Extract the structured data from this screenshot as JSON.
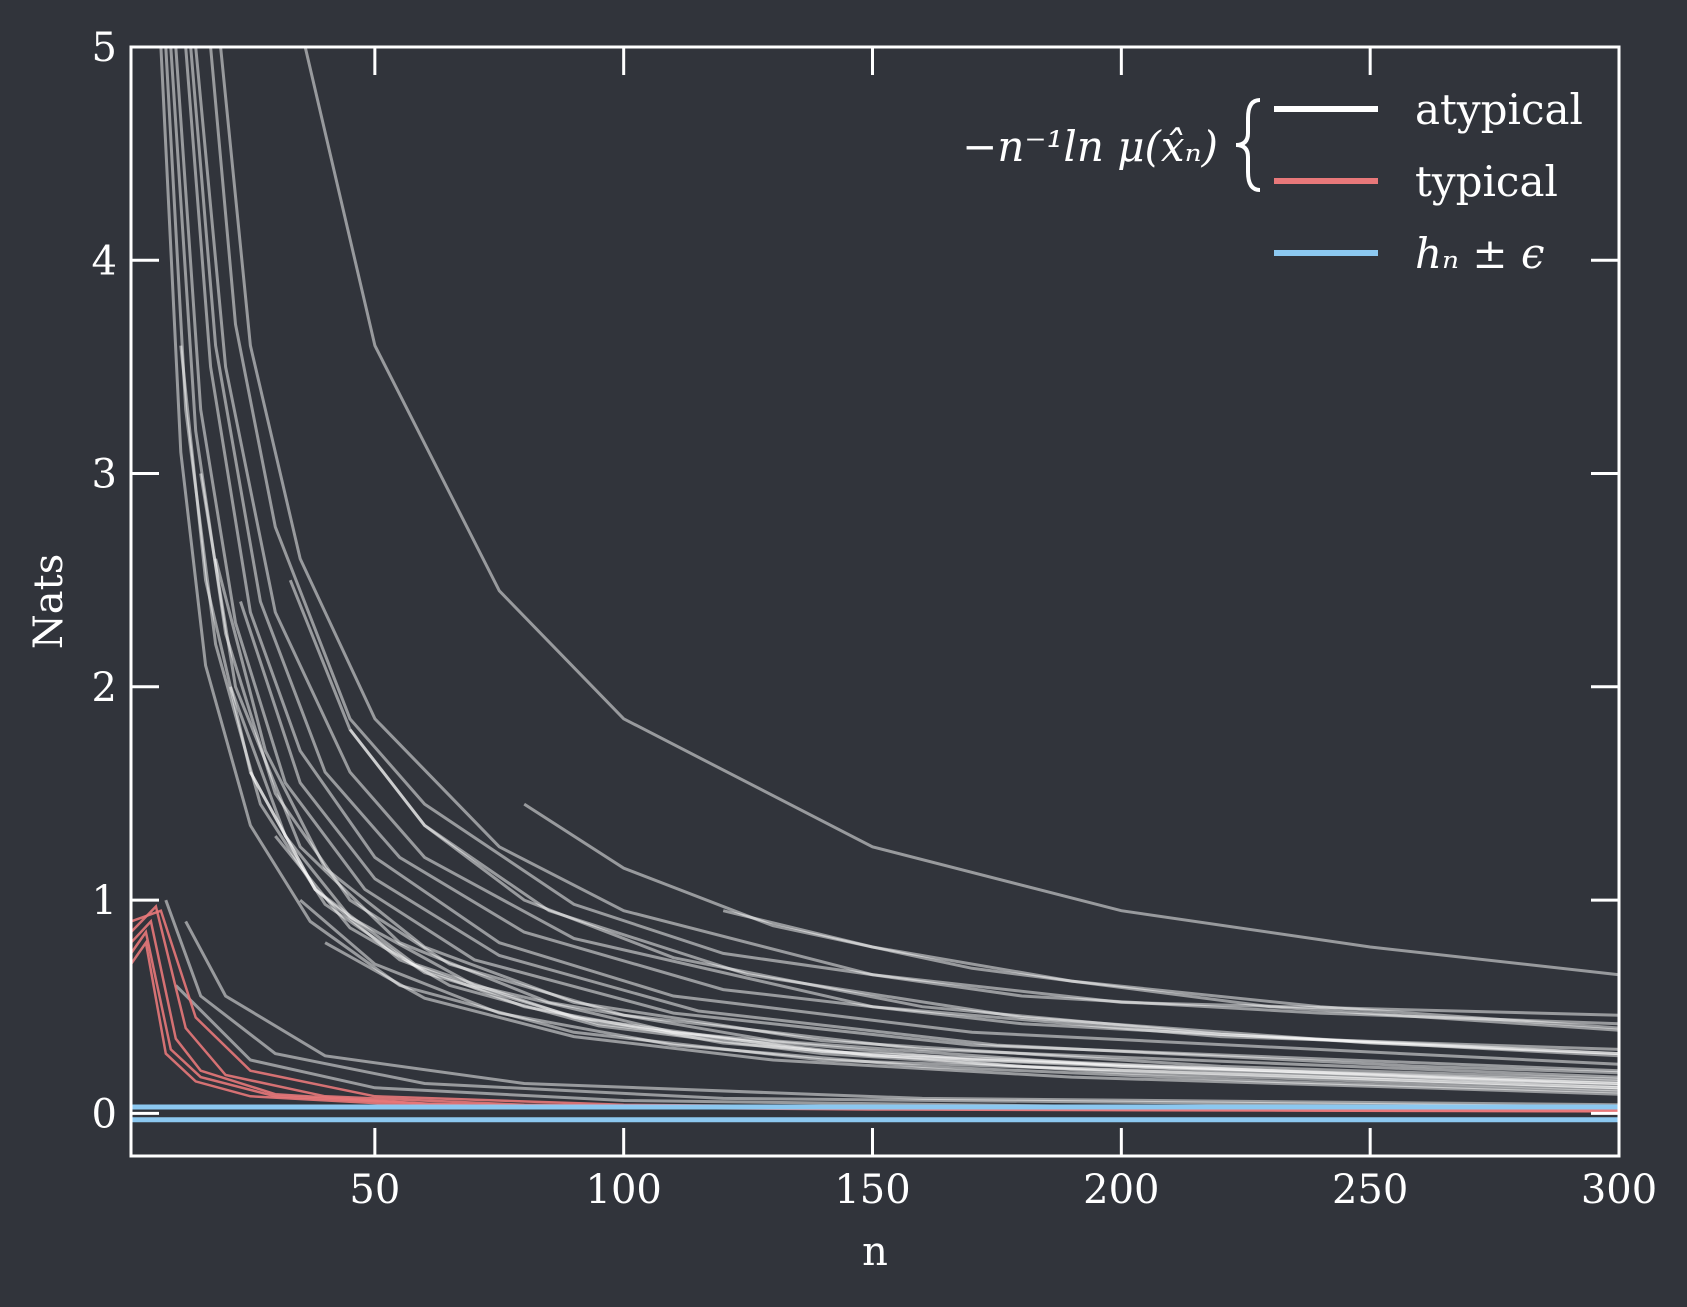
{
  "chart_data": {
    "type": "line",
    "title": "",
    "xlabel": "n",
    "ylabel": "Nats",
    "xlim": [
      1,
      300
    ],
    "ylim": [
      -0.2,
      5
    ],
    "xticks": [
      50,
      100,
      150,
      200,
      250,
      300
    ],
    "yticks": [
      0,
      1,
      2,
      3,
      4,
      5
    ],
    "xtick_labels": [
      "50",
      "100",
      "150",
      "200",
      "250",
      "300"
    ],
    "ytick_labels": [
      "0",
      "1",
      "2",
      "3",
      "4",
      "5"
    ],
    "grid": false,
    "legend": {
      "placement": "top-right",
      "brace_label": "−n⁻¹ln μ(x̂ₙ)",
      "entries": [
        {
          "label": "atypical",
          "color": "#ffffff"
        },
        {
          "label": "typical",
          "color": "#e8787a"
        },
        {
          "label": "hₙ ± ϵ",
          "color": "#8cc8f0"
        }
      ]
    },
    "colors": {
      "background": "#31343b",
      "axes": "#ffffff",
      "atypical": "#ffffff",
      "typical": "#e8787a",
      "band": "#8cc8f0"
    },
    "band": {
      "center": 0.0,
      "epsilon": 0.03
    },
    "typical_series": [
      {
        "name": "typical",
        "values": [
          [
            1,
            0.8
          ],
          [
            5,
            0.9
          ],
          [
            10,
            0.35
          ],
          [
            15,
            0.2
          ],
          [
            30,
            0.09
          ],
          [
            60,
            0.045
          ],
          [
            100,
            0.03
          ],
          [
            150,
            0.02
          ],
          [
            300,
            0.01
          ]
        ]
      },
      {
        "name": "typical",
        "values": [
          [
            1,
            0.85
          ],
          [
            6,
            0.97
          ],
          [
            12,
            0.4
          ],
          [
            20,
            0.18
          ],
          [
            40,
            0.08
          ],
          [
            80,
            0.04
          ],
          [
            150,
            0.025
          ],
          [
            300,
            0.012
          ]
        ]
      },
      {
        "name": "typical",
        "values": [
          [
            1,
            0.75
          ],
          [
            4,
            0.85
          ],
          [
            9,
            0.3
          ],
          [
            15,
            0.17
          ],
          [
            30,
            0.08
          ],
          [
            70,
            0.035
          ],
          [
            150,
            0.02
          ],
          [
            300,
            0.01
          ]
        ]
      },
      {
        "name": "typical",
        "values": [
          [
            1,
            0.7
          ],
          [
            4,
            0.8
          ],
          [
            8,
            0.28
          ],
          [
            14,
            0.15
          ],
          [
            25,
            0.08
          ],
          [
            60,
            0.035
          ],
          [
            150,
            0.018
          ],
          [
            300,
            0.009
          ]
        ]
      },
      {
        "name": "typical",
        "values": [
          [
            1,
            0.9
          ],
          [
            7,
            0.95
          ],
          [
            14,
            0.45
          ],
          [
            25,
            0.2
          ],
          [
            50,
            0.08
          ],
          [
            100,
            0.04
          ],
          [
            200,
            0.02
          ],
          [
            300,
            0.014
          ]
        ]
      }
    ],
    "atypical_series": [
      {
        "name": "atypical",
        "values": [
          [
            36,
            5.0
          ],
          [
            50,
            3.6
          ],
          [
            75,
            2.45
          ],
          [
            100,
            1.85
          ],
          [
            150,
            1.25
          ],
          [
            200,
            0.95
          ],
          [
            250,
            0.78
          ],
          [
            300,
            0.65
          ]
        ]
      },
      {
        "name": "atypical",
        "values": [
          [
            19,
            5.0
          ],
          [
            25,
            3.6
          ],
          [
            35,
            2.6
          ],
          [
            50,
            1.85
          ],
          [
            75,
            1.25
          ],
          [
            100,
            0.95
          ],
          [
            150,
            0.65
          ],
          [
            200,
            0.52
          ],
          [
            300,
            0.46
          ]
        ]
      },
      {
        "name": "atypical",
        "values": [
          [
            17,
            5.0
          ],
          [
            22,
            3.7
          ],
          [
            30,
            2.75
          ],
          [
            45,
            1.85
          ],
          [
            60,
            1.45
          ],
          [
            90,
            0.98
          ],
          [
            120,
            0.75
          ],
          [
            180,
            0.55
          ],
          [
            240,
            0.47
          ],
          [
            300,
            0.42
          ]
        ]
      },
      {
        "name": "atypical",
        "values": [
          [
            14,
            5.0
          ],
          [
            20,
            3.5
          ],
          [
            30,
            2.35
          ],
          [
            45,
            1.6
          ],
          [
            60,
            1.2
          ],
          [
            90,
            0.82
          ],
          [
            150,
            0.5
          ],
          [
            220,
            0.36
          ],
          [
            300,
            0.3
          ]
        ]
      },
      {
        "name": "atypical",
        "values": [
          [
            13,
            5.0
          ],
          [
            18,
            3.6
          ],
          [
            27,
            2.4
          ],
          [
            40,
            1.6
          ],
          [
            55,
            1.2
          ],
          [
            80,
            0.85
          ],
          [
            120,
            0.58
          ],
          [
            180,
            0.42
          ],
          [
            300,
            0.27
          ]
        ]
      },
      {
        "name": "atypical",
        "values": [
          [
            12,
            5.0
          ],
          [
            17,
            3.5
          ],
          [
            25,
            2.35
          ],
          [
            35,
            1.7
          ],
          [
            50,
            1.2
          ],
          [
            75,
            0.8
          ],
          [
            110,
            0.55
          ],
          [
            170,
            0.38
          ],
          [
            300,
            0.23
          ]
        ]
      },
      {
        "name": "atypical",
        "values": [
          [
            10,
            5.0
          ],
          [
            15,
            3.3
          ],
          [
            22,
            2.3
          ],
          [
            32,
            1.55
          ],
          [
            48,
            1.05
          ],
          [
            70,
            0.72
          ],
          [
            110,
            0.47
          ],
          [
            170,
            0.32
          ],
          [
            300,
            0.2
          ]
        ]
      },
      {
        "name": "atypical",
        "values": [
          [
            9,
            5.0
          ],
          [
            14,
            3.2
          ],
          [
            20,
            2.25
          ],
          [
            30,
            1.5
          ],
          [
            45,
            1.0
          ],
          [
            65,
            0.7
          ],
          [
            100,
            0.46
          ],
          [
            160,
            0.3
          ],
          [
            300,
            0.17
          ]
        ]
      },
      {
        "name": "atypical",
        "values": [
          [
            8,
            5.0
          ],
          [
            12,
            3.3
          ],
          [
            18,
            2.2
          ],
          [
            27,
            1.45
          ],
          [
            40,
            0.98
          ],
          [
            60,
            0.66
          ],
          [
            95,
            0.42
          ],
          [
            150,
            0.27
          ],
          [
            300,
            0.14
          ]
        ]
      },
      {
        "name": "atypical",
        "values": [
          [
            7,
            5.0
          ],
          [
            11,
            3.1
          ],
          [
            16,
            2.1
          ],
          [
            25,
            1.35
          ],
          [
            37,
            0.9
          ],
          [
            55,
            0.6
          ],
          [
            90,
            0.38
          ],
          [
            140,
            0.25
          ],
          [
            300,
            0.12
          ]
        ]
      },
      {
        "name": "atypical",
        "values": [
          [
            18,
            2.6
          ],
          [
            28,
            1.7
          ],
          [
            40,
            1.15
          ],
          [
            60,
            0.78
          ],
          [
            90,
            0.52
          ],
          [
            140,
            0.34
          ],
          [
            220,
            0.22
          ],
          [
            300,
            0.16
          ]
        ]
      },
      {
        "name": "atypical",
        "values": [
          [
            21,
            2.0
          ],
          [
            32,
            1.3
          ],
          [
            45,
            0.92
          ],
          [
            70,
            0.6
          ],
          [
            110,
            0.38
          ],
          [
            170,
            0.25
          ],
          [
            250,
            0.17
          ],
          [
            300,
            0.14
          ]
        ]
      },
      {
        "name": "atypical",
        "values": [
          [
            25,
            1.6
          ],
          [
            38,
            1.05
          ],
          [
            55,
            0.72
          ],
          [
            80,
            0.5
          ],
          [
            120,
            0.33
          ],
          [
            180,
            0.22
          ],
          [
            300,
            0.12
          ]
        ]
      },
      {
        "name": "atypical",
        "values": [
          [
            30,
            1.3
          ],
          [
            45,
            0.87
          ],
          [
            65,
            0.6
          ],
          [
            95,
            0.41
          ],
          [
            140,
            0.28
          ],
          [
            200,
            0.19
          ],
          [
            300,
            0.11
          ]
        ]
      },
      {
        "name": "atypical",
        "values": [
          [
            35,
            1.0
          ],
          [
            50,
            0.7
          ],
          [
            75,
            0.47
          ],
          [
            110,
            0.32
          ],
          [
            160,
            0.22
          ],
          [
            230,
            0.15
          ],
          [
            300,
            0.1
          ]
        ]
      },
      {
        "name": "atypical",
        "values": [
          [
            40,
            0.8
          ],
          [
            60,
            0.54
          ],
          [
            90,
            0.36
          ],
          [
            130,
            0.25
          ],
          [
            190,
            0.17
          ],
          [
            260,
            0.12
          ],
          [
            300,
            0.09
          ]
        ]
      },
      {
        "name": "atypical",
        "values": [
          [
            15,
            3.0
          ],
          [
            22,
            2.0
          ],
          [
            35,
            1.25
          ],
          [
            55,
            0.8
          ],
          [
            85,
            0.52
          ],
          [
            130,
            0.34
          ],
          [
            200,
            0.22
          ],
          [
            300,
            0.15
          ]
        ]
      },
      {
        "name": "atypical",
        "values": [
          [
            11,
            3.6
          ],
          [
            16,
            2.5
          ],
          [
            25,
            1.6
          ],
          [
            38,
            1.05
          ],
          [
            58,
            0.7
          ],
          [
            90,
            0.45
          ],
          [
            140,
            0.29
          ],
          [
            300,
            0.13
          ]
        ]
      },
      {
        "name": "atypical",
        "values": [
          [
            23,
            2.4
          ],
          [
            35,
            1.55
          ],
          [
            50,
            1.1
          ],
          [
            75,
            0.74
          ],
          [
            115,
            0.48
          ],
          [
            175,
            0.32
          ],
          [
            260,
            0.22
          ],
          [
            300,
            0.19
          ]
        ]
      },
      {
        "name": "atypical",
        "values": [
          [
            33,
            2.5
          ],
          [
            45,
            1.8
          ],
          [
            60,
            1.35
          ],
          [
            85,
            0.95
          ],
          [
            125,
            0.65
          ],
          [
            180,
            0.45
          ],
          [
            250,
            0.33
          ],
          [
            300,
            0.28
          ]
        ]
      },
      {
        "name": "atypical",
        "values": [
          [
            45,
            1.8
          ],
          [
            60,
            1.35
          ],
          [
            80,
            1.0
          ],
          [
            110,
            0.73
          ],
          [
            160,
            0.5
          ],
          [
            220,
            0.37
          ],
          [
            300,
            0.28
          ]
        ]
      },
      {
        "name": "atypical",
        "values": [
          [
            80,
            1.45
          ],
          [
            100,
            1.15
          ],
          [
            130,
            0.88
          ],
          [
            170,
            0.68
          ],
          [
            230,
            0.5
          ],
          [
            300,
            0.39
          ]
        ]
      },
      {
        "name": "atypical",
        "values": [
          [
            120,
            0.95
          ],
          [
            150,
            0.78
          ],
          [
            190,
            0.62
          ],
          [
            240,
            0.5
          ],
          [
            300,
            0.4
          ]
        ]
      },
      {
        "name": "atypical",
        "values": [
          [
            8,
            1.0
          ],
          [
            15,
            0.55
          ],
          [
            30,
            0.28
          ],
          [
            60,
            0.14
          ],
          [
            120,
            0.07
          ],
          [
            300,
            0.03
          ]
        ]
      },
      {
        "name": "atypical",
        "values": [
          [
            12,
            0.9
          ],
          [
            20,
            0.55
          ],
          [
            40,
            0.27
          ],
          [
            80,
            0.14
          ],
          [
            160,
            0.07
          ],
          [
            300,
            0.04
          ]
        ]
      },
      {
        "name": "atypical",
        "values": [
          [
            10,
            0.6
          ],
          [
            25,
            0.25
          ],
          [
            50,
            0.12
          ],
          [
            100,
            0.06
          ],
          [
            200,
            0.03
          ],
          [
            300,
            0.02
          ]
        ]
      }
    ]
  }
}
